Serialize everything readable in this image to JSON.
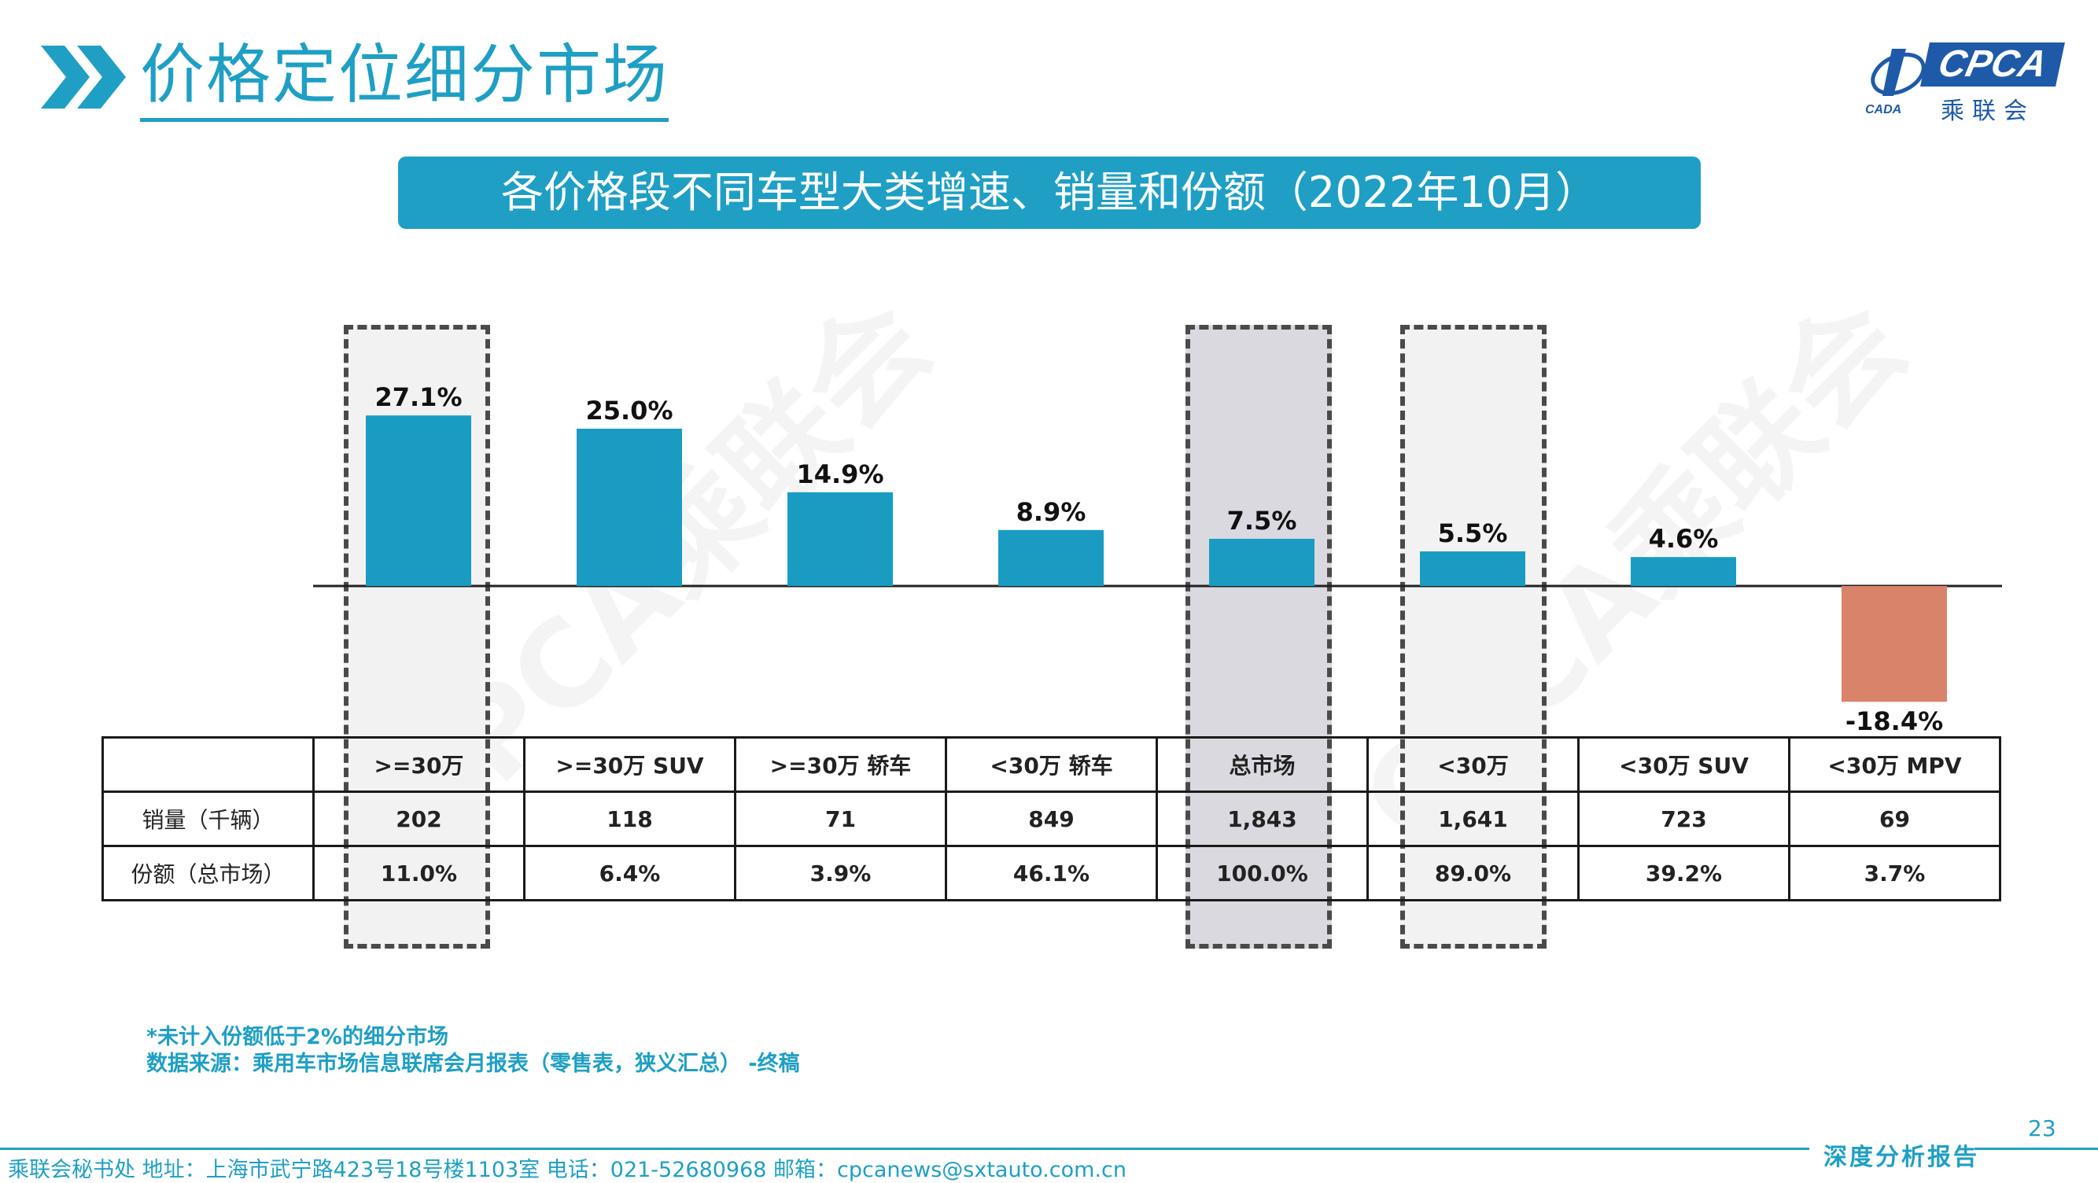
{
  "header": {
    "title": "价格定位细分市场"
  },
  "logo": {
    "brand": "CPCA",
    "sub": "乘联会",
    "emblem_text": "CADA"
  },
  "banner": {
    "title": "各价格段不同车型大类增速、销量和份额（2022年10月）"
  },
  "chart_data": {
    "type": "bar",
    "title": "各价格段不同车型大类增速、销量和份额（2022年10月）",
    "categories": [
      ">=30万",
      ">=30万 SUV",
      ">=30万 轿车",
      "<30万 轿车",
      "总市场",
      "<30万",
      "<30万 SUV",
      "<30万 MPV"
    ],
    "series": [
      {
        "values": [
          27.1,
          25.0,
          14.9,
          8.9,
          7.5,
          5.5,
          4.6,
          -18.4
        ]
      }
    ],
    "value_labels": [
      "27.1%",
      "25.0%",
      "14.9%",
      "8.9%",
      "7.5%",
      "5.5%",
      "4.6%",
      "-18.4%"
    ],
    "ylim": [
      -20,
      30
    ],
    "positive_color": "#1a9cc2",
    "negative_color": "#d9836a",
    "highlighted_categories": [
      ">=30万",
      "总市场",
      "<30万"
    ]
  },
  "table": {
    "header": [
      "",
      ">=30万",
      ">=30万 SUV",
      ">=30万 轿车",
      "<30万 轿车",
      "总市场",
      "<30万",
      "<30万 SUV",
      "<30万 MPV"
    ],
    "rows": [
      {
        "label": "销量（千辆）",
        "values": [
          "202",
          "118",
          "71",
          "849",
          "1,843",
          "1,641",
          "723",
          "69"
        ]
      },
      {
        "label": "份额（总市场）",
        "values": [
          "11.0%",
          "6.4%",
          "3.9%",
          "46.1%",
          "100.0%",
          "89.0%",
          "39.2%",
          "3.7%"
        ]
      }
    ]
  },
  "notes": {
    "line1": "*未计入份额低于2%的细分市场",
    "line2": "数据来源：乘用车市场信息联席会月报表（零售表，狭义汇总） -终稿"
  },
  "watermark": "CPCA乘联会",
  "page_number": "23",
  "footer": {
    "text": "乘联会秘书处   地址：上海市武宁路423号18号楼1103室   电话：021-52680968   邮箱：cpcanews@sxtauto.com.cn",
    "tag": "深度分析报告"
  },
  "colors": {
    "accent": "#1f9fc4",
    "logo": "#1e5aa8",
    "highlight_fill": "#d9d9df"
  }
}
